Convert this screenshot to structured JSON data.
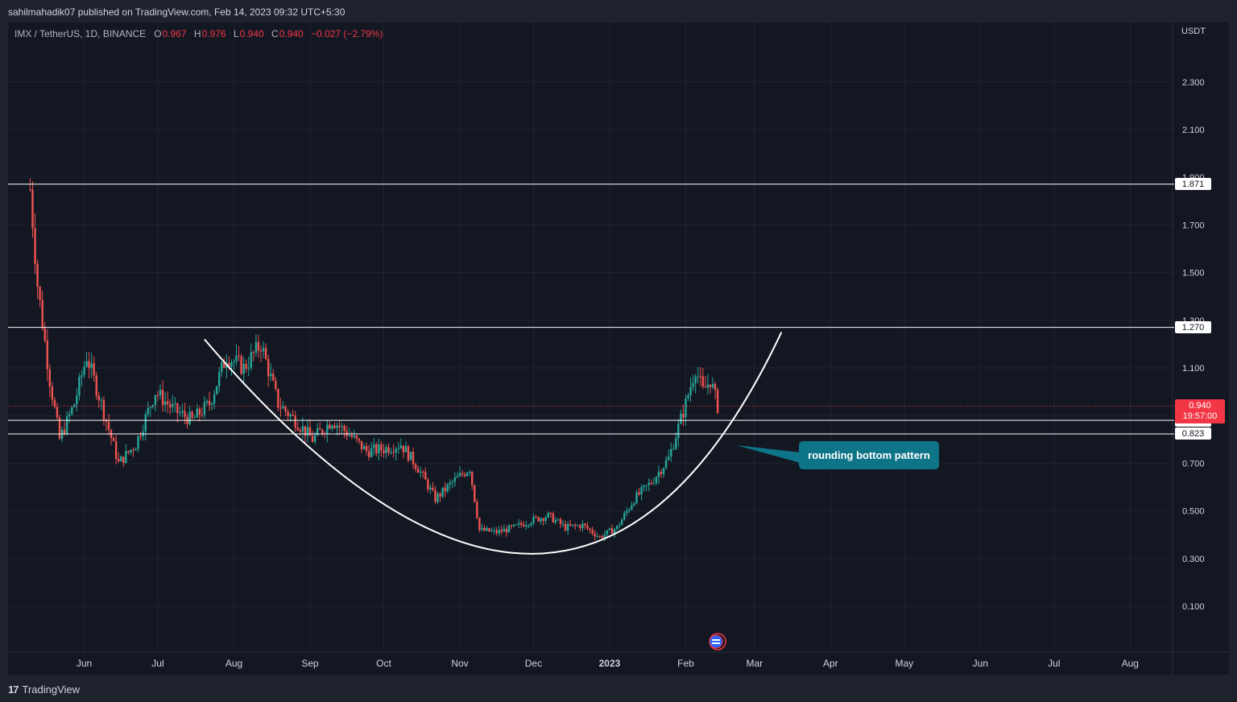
{
  "header": {
    "published_text": "sahilmahadik07 published on TradingView.com, Feb 14, 2023 09:32 UTC+5:30"
  },
  "legend": {
    "symbol": "IMX / TetherUS, 1D, BINANCE",
    "o_label": "O",
    "o_value": "0.967",
    "h_label": "H",
    "h_value": "0.976",
    "l_label": "L",
    "l_value": "0.940",
    "c_label": "C",
    "c_value": "0.940",
    "change": "−0.027 (−2.79%)"
  },
  "axis": {
    "unit": "USDT",
    "price_ticks": [
      "2.300",
      "2.100",
      "1.900",
      "1.700",
      "1.500",
      "1.300",
      "1.100",
      "0.900",
      "0.700",
      "0.500",
      "0.300",
      "0.100"
    ],
    "time_ticks": [
      "Jun",
      "Jul",
      "Aug",
      "Sep",
      "Oct",
      "Nov",
      "Dec",
      "2023",
      "Feb",
      "Mar",
      "Apr",
      "May",
      "Jun",
      "Jul",
      "Aug"
    ]
  },
  "levels": [
    {
      "price": 1.871,
      "label": "1.871"
    },
    {
      "price": 1.27,
      "label": "1.270"
    },
    {
      "price": 0.88,
      "label": "0.880"
    },
    {
      "price": 0.823,
      "label": "0.823"
    }
  ],
  "last_price": {
    "label": "0.940",
    "countdown": "19:57:00"
  },
  "annotation": {
    "text": "rounding bottom pattern"
  },
  "footer": {
    "logo_text": "17",
    "brand": "TradingView"
  },
  "colors": {
    "up": "#26a69a",
    "down": "#ef5350",
    "background": "#131722",
    "accent_callout": "#0e7487"
  },
  "chart_data": {
    "type": "candlestick",
    "ylim": [
      -0.1,
      2.5
    ],
    "series_path_points": [
      [
        "2022-05-10",
        1.85
      ],
      [
        "2022-05-13",
        1.45
      ],
      [
        "2022-05-18",
        1.05
      ],
      [
        "2022-05-22",
        0.8
      ],
      [
        "2022-05-28",
        0.95
      ],
      [
        "2022-06-02",
        1.15
      ],
      [
        "2022-06-08",
        0.95
      ],
      [
        "2022-06-15",
        0.7
      ],
      [
        "2022-06-22",
        0.78
      ],
      [
        "2022-06-30",
        1.0
      ],
      [
        "2022-07-08",
        0.92
      ],
      [
        "2022-07-15",
        0.88
      ],
      [
        "2022-07-22",
        0.95
      ],
      [
        "2022-07-29",
        1.15
      ],
      [
        "2022-08-05",
        1.1
      ],
      [
        "2022-08-12",
        1.2
      ],
      [
        "2022-08-19",
        0.95
      ],
      [
        "2022-08-26",
        0.88
      ],
      [
        "2022-09-02",
        0.8
      ],
      [
        "2022-09-10",
        0.88
      ],
      [
        "2022-09-17",
        0.82
      ],
      [
        "2022-09-24",
        0.75
      ],
      [
        "2022-10-01",
        0.76
      ],
      [
        "2022-10-08",
        0.78
      ],
      [
        "2022-10-15",
        0.68
      ],
      [
        "2022-10-22",
        0.55
      ],
      [
        "2022-10-29",
        0.62
      ],
      [
        "2022-11-05",
        0.68
      ],
      [
        "2022-11-09",
        0.42
      ],
      [
        "2022-11-16",
        0.41
      ],
      [
        "2022-11-23",
        0.43
      ],
      [
        "2022-11-30",
        0.46
      ],
      [
        "2022-12-07",
        0.48
      ],
      [
        "2022-12-14",
        0.43
      ],
      [
        "2022-12-21",
        0.44
      ],
      [
        "2022-12-28",
        0.39
      ],
      [
        "2023-01-04",
        0.43
      ],
      [
        "2023-01-11",
        0.55
      ],
      [
        "2023-01-18",
        0.62
      ],
      [
        "2023-01-25",
        0.72
      ],
      [
        "2023-02-01",
        0.95
      ],
      [
        "2023-02-05",
        1.1
      ],
      [
        "2023-02-08",
        1.0
      ],
      [
        "2023-02-11",
        1.05
      ],
      [
        "2023-02-14",
        0.94
      ]
    ]
  }
}
